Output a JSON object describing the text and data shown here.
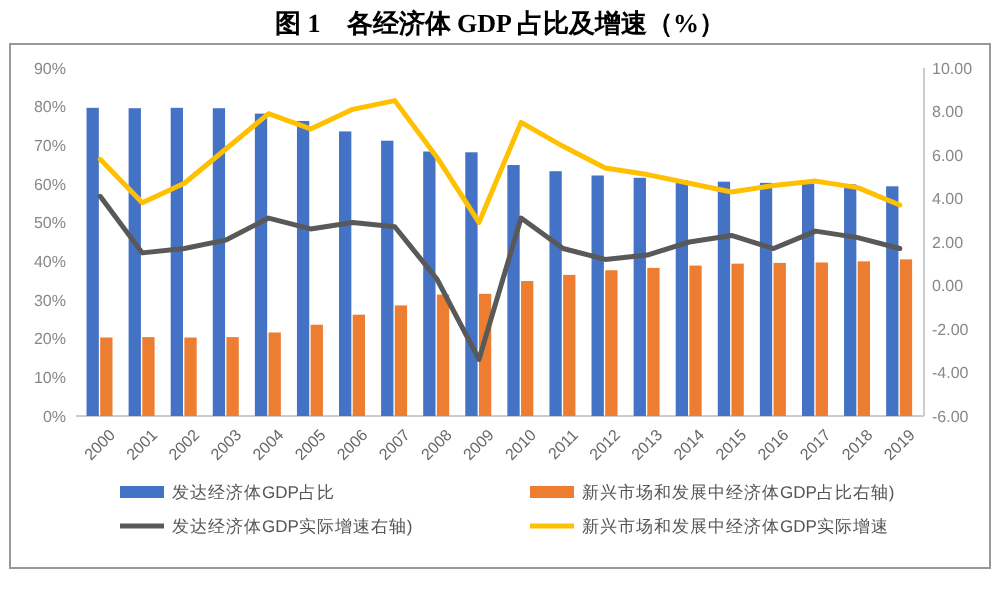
{
  "chart_data": {
    "type": "bar",
    "title": "图 1　各经济体 GDP 占比及增速（%）",
    "categories": [
      "2000",
      "2001",
      "2002",
      "2003",
      "2004",
      "2005",
      "2006",
      "2007",
      "2008",
      "2009",
      "2010",
      "2011",
      "2012",
      "2013",
      "2014",
      "2015",
      "2016",
      "2017",
      "2018",
      "2019"
    ],
    "series": [
      {
        "name": "发达经济体GDP占比",
        "color": "#4472c4",
        "values": [
          79.7,
          79.6,
          79.7,
          79.6,
          78.2,
          76.3,
          73.6,
          71.2,
          68.4,
          68.2,
          64.9,
          63.3,
          62.2,
          61.6,
          61.0,
          60.6,
          60.3,
          60.2,
          59.9,
          59.4
        ]
      },
      {
        "name": "新兴市场和发展中经济体GDP占比右轴)",
        "color": "#ed7d31",
        "values": [
          20.3,
          20.4,
          20.3,
          20.4,
          21.6,
          23.6,
          26.2,
          28.6,
          31.4,
          31.6,
          34.9,
          36.5,
          37.7,
          38.3,
          38.9,
          39.4,
          39.6,
          39.7,
          40.0,
          40.5
        ]
      },
      {
        "name": "发达经济体GDP实际增速右轴)",
        "type": "line",
        "axis": "y2",
        "color": "#595959",
        "values": [
          4.1,
          1.5,
          1.7,
          2.1,
          3.1,
          2.6,
          2.9,
          2.7,
          0.3,
          -3.4,
          3.1,
          1.7,
          1.2,
          1.4,
          2.0,
          2.3,
          1.7,
          2.5,
          2.2,
          1.7
        ]
      },
      {
        "name": "新兴市场和发展中经济体GDP实际增速",
        "type": "line",
        "axis": "y2",
        "color": "#ffc000",
        "values": [
          5.8,
          3.8,
          4.7,
          6.3,
          7.9,
          7.2,
          8.1,
          8.5,
          5.9,
          2.9,
          7.5,
          6.4,
          5.4,
          5.1,
          4.7,
          4.3,
          4.6,
          4.8,
          4.5,
          3.7
        ]
      }
    ],
    "ylim": [
      0,
      90
    ],
    "yticks": [
      {
        "value": 0,
        "label": "0%"
      },
      {
        "value": 10,
        "label": "10%"
      },
      {
        "value": 20,
        "label": "20%"
      },
      {
        "value": 30,
        "label": "30%"
      },
      {
        "value": 40,
        "label": "40%"
      },
      {
        "value": 50,
        "label": "50%"
      },
      {
        "value": 60,
        "label": "60%"
      },
      {
        "value": 70,
        "label": "70%"
      },
      {
        "value": 80,
        "label": "80%"
      },
      {
        "value": 90,
        "label": "90%"
      }
    ],
    "y2lim": [
      -6,
      10
    ],
    "y2ticks": [
      {
        "value": 10,
        "label": "10.00"
      },
      {
        "value": 8,
        "label": "8.00"
      },
      {
        "value": 6,
        "label": "6.00"
      },
      {
        "value": 4,
        "label": "4.00"
      },
      {
        "value": 2,
        "label": "2.00"
      },
      {
        "value": 0,
        "label": "0.00"
      },
      {
        "value": -2,
        "label": "-2.00"
      },
      {
        "value": -4,
        "label": "-4.00"
      },
      {
        "value": -6,
        "label": "-6.00"
      }
    ],
    "legend": "bottom",
    "grid": false
  }
}
